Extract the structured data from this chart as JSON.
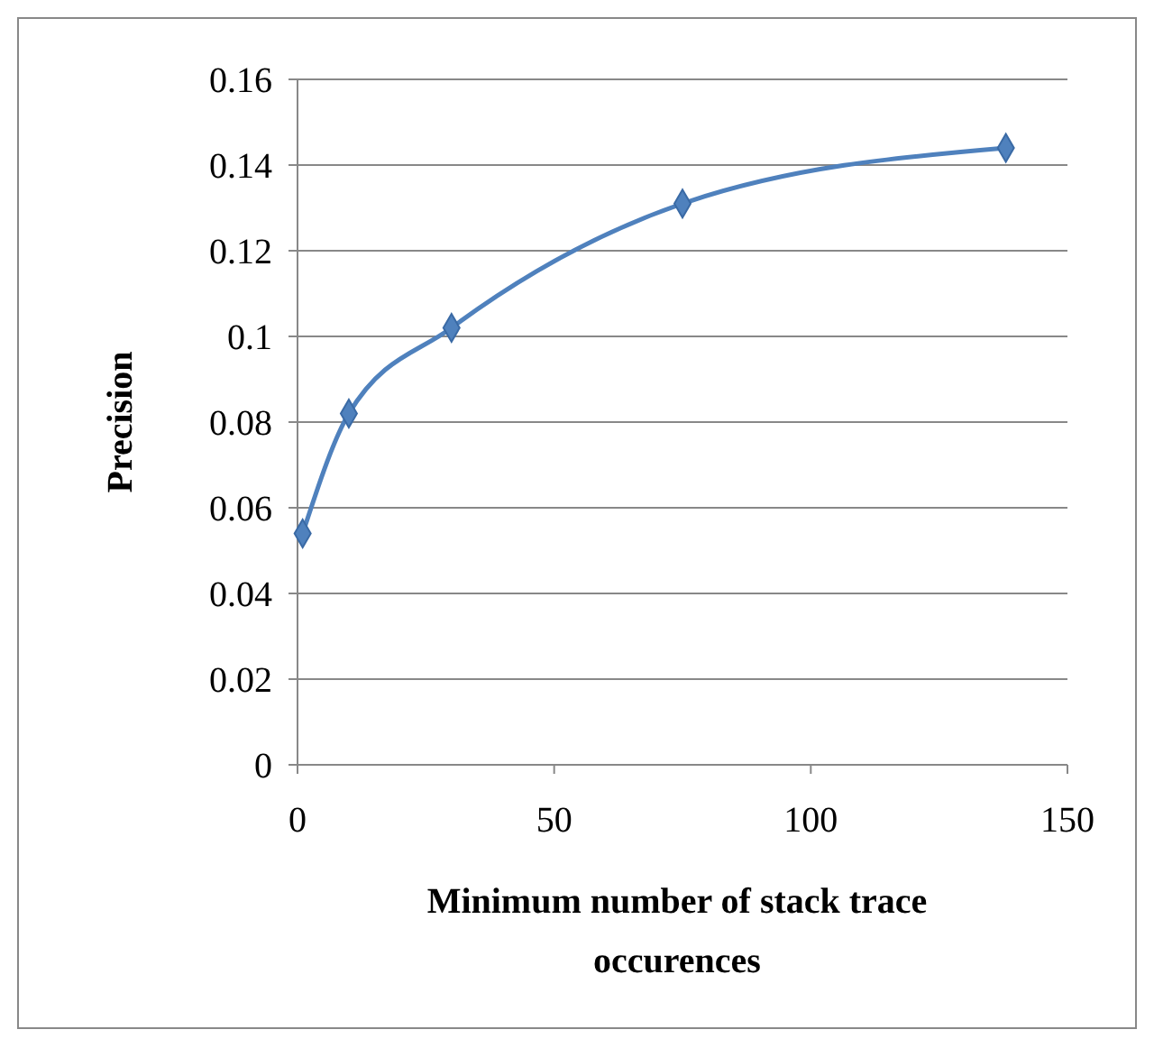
{
  "chart_data": {
    "type": "line",
    "xlabel": "Minimum number of stack trace occurences",
    "ylabel": "Precision",
    "x": [
      1,
      10,
      30,
      75,
      138
    ],
    "series": [
      {
        "color": "#4f81bd",
        "values": [
          0.054,
          0.082,
          0.102,
          0.131,
          0.144
        ]
      }
    ],
    "xlim": [
      0,
      150
    ],
    "xticks": [
      0,
      50,
      100,
      150
    ],
    "ylim": [
      0,
      0.16
    ],
    "yticks": [
      0,
      0.02,
      0.04,
      0.06,
      0.08,
      0.1,
      0.12,
      0.14,
      0.16
    ],
    "grid": "y",
    "marker": "diamond",
    "line_style": "solid"
  }
}
